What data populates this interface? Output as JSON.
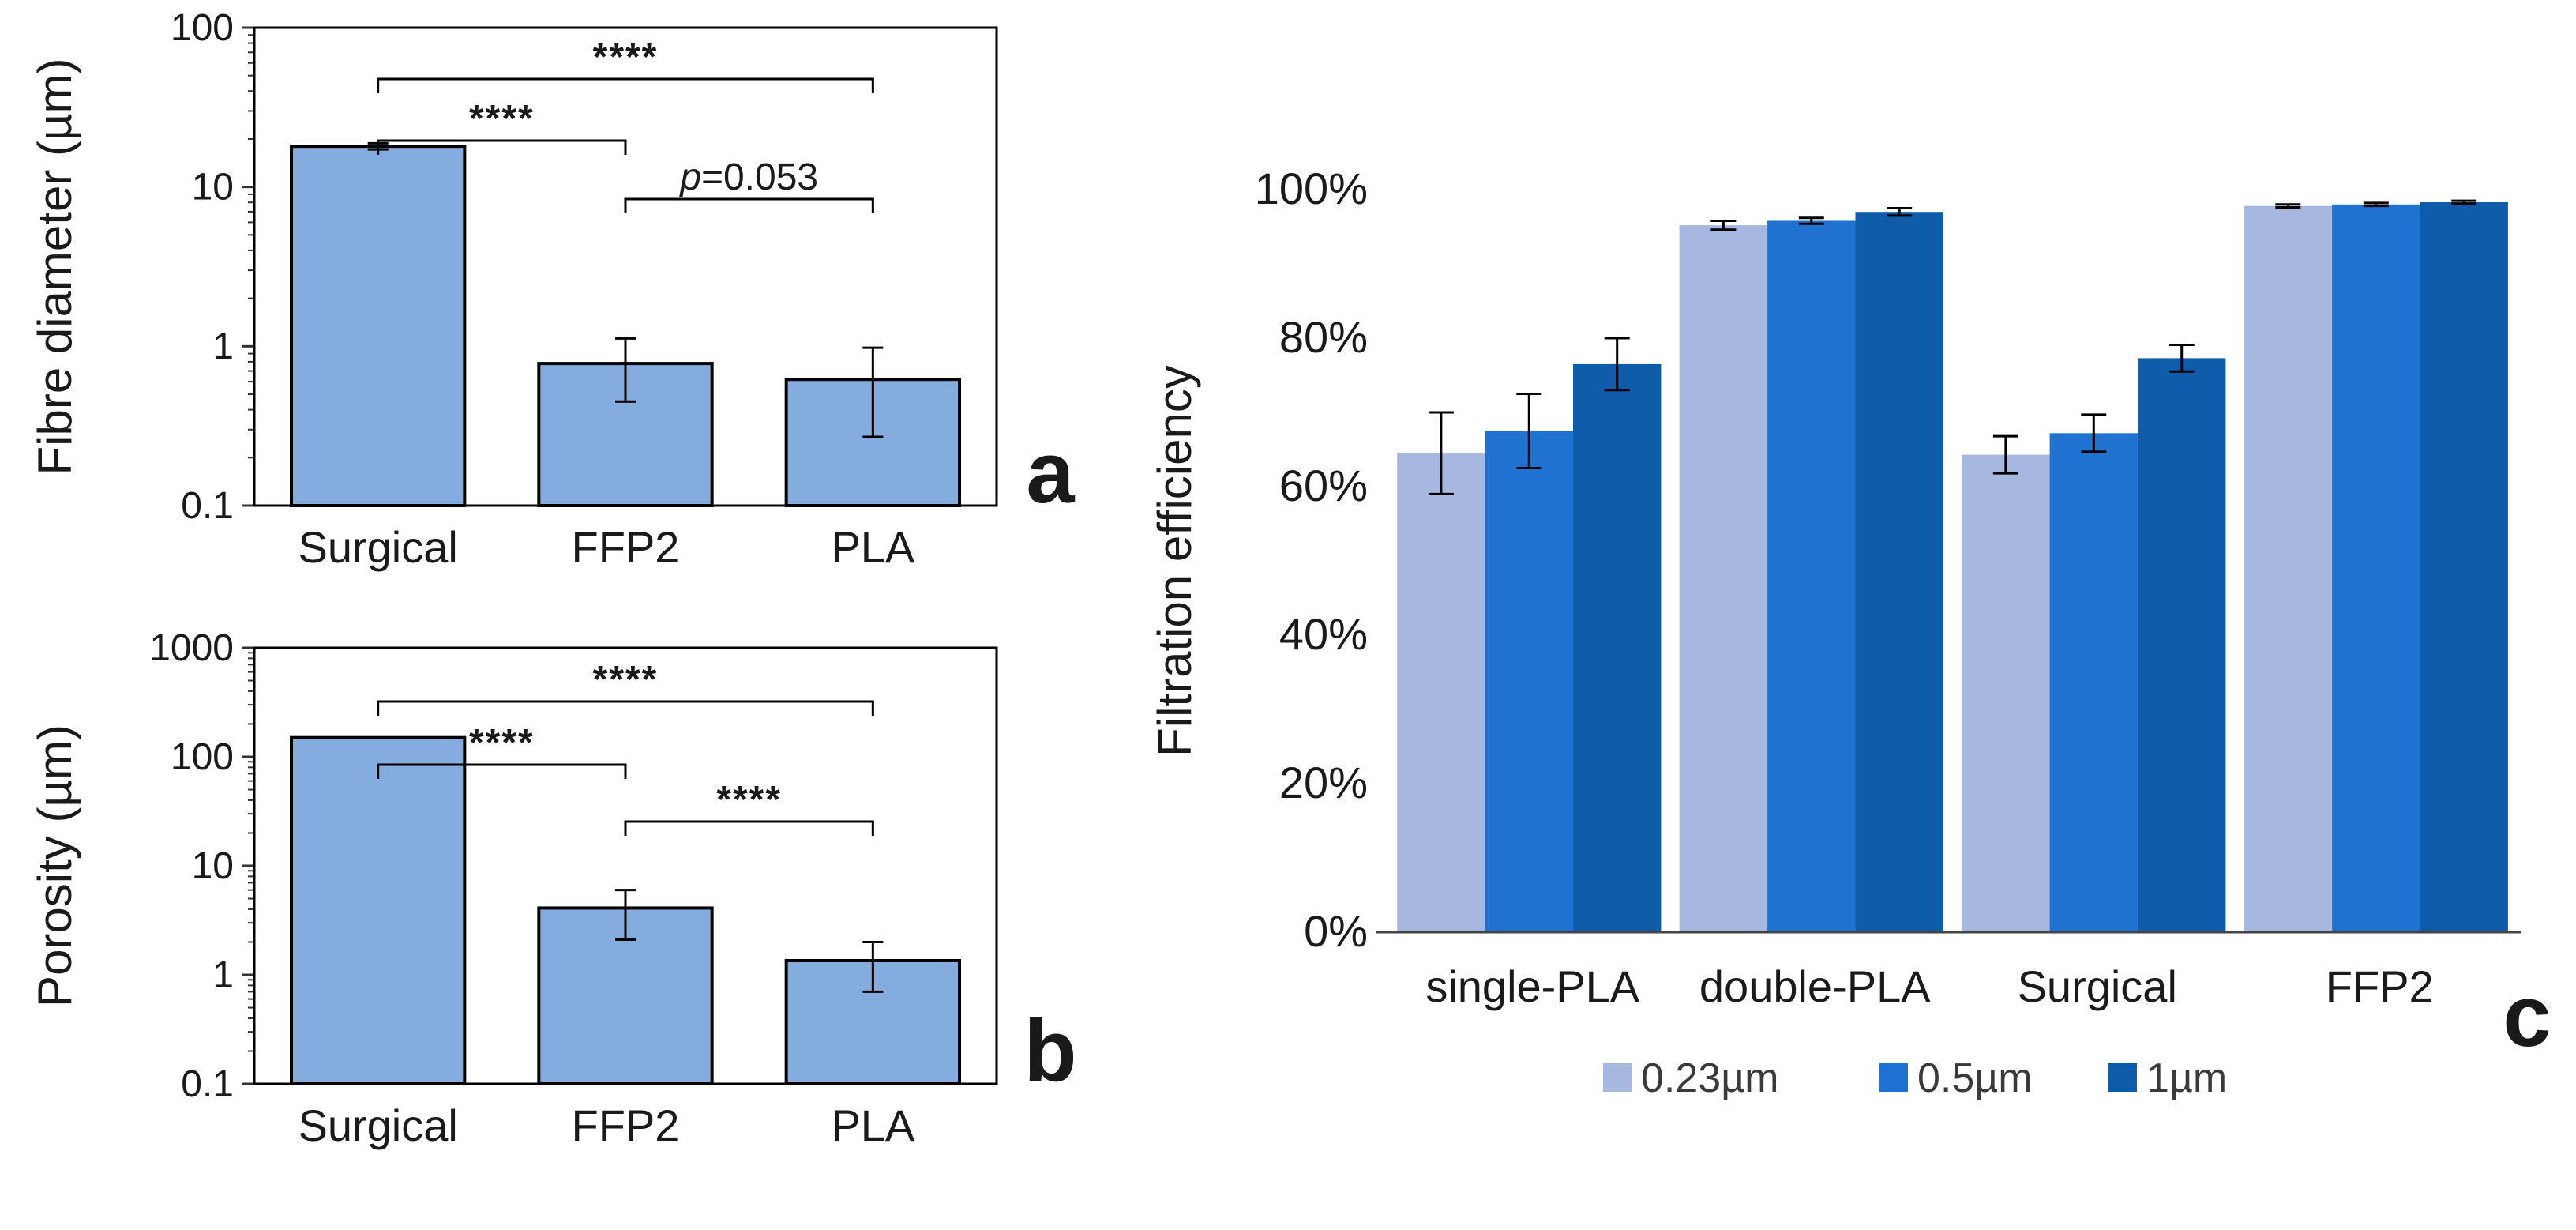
{
  "chart_data": [
    {
      "type": "bar",
      "panel_label": "a",
      "ylabel": "Fibre diameter (µm)",
      "yscale": "log",
      "ylim": [
        0.1,
        100
      ],
      "yticks": [
        "0.1",
        "1",
        "10",
        "100"
      ],
      "categories": [
        "Surgical",
        "FFP2",
        "PLA"
      ],
      "values": [
        18,
        0.78,
        0.62
      ],
      "error_low": [
        17.2,
        0.45,
        0.27
      ],
      "error_high": [
        18.8,
        1.12,
        0.98
      ],
      "color": "#85ACDE",
      "significance": [
        {
          "from": "Surgical",
          "to": "PLA",
          "label": "****"
        },
        {
          "from": "Surgical",
          "to": "FFP2",
          "label": "****"
        },
        {
          "from": "FFP2",
          "to": "PLA",
          "label_italic": "p",
          "label_rest": "=0.053"
        }
      ]
    },
    {
      "type": "bar",
      "panel_label": "b",
      "ylabel": "Porosity (µm)",
      "yscale": "log",
      "ylim": [
        0.1,
        1000
      ],
      "yticks": [
        "0.1",
        "1",
        "10",
        "100",
        "1000"
      ],
      "categories": [
        "Surgical",
        "FFP2",
        "PLA"
      ],
      "values": [
        150,
        4.1,
        1.35
      ],
      "error_low": [
        150,
        2.1,
        0.7
      ],
      "error_high": [
        150,
        6.0,
        2.0
      ],
      "color": "#85ACDE",
      "significance": [
        {
          "from": "Surgical",
          "to": "PLA",
          "label": "****"
        },
        {
          "from": "Surgical",
          "to": "FFP2",
          "label": "****"
        },
        {
          "from": "FFP2",
          "to": "PLA",
          "label": "****"
        }
      ]
    },
    {
      "type": "bar",
      "panel_label": "c",
      "ylabel": "Filtration efficiency",
      "ylim": [
        0,
        100
      ],
      "yticks": [
        "0%",
        "20%",
        "40%",
        "60%",
        "80%",
        "100%"
      ],
      "categories": [
        "single-PLA",
        "double-PLA",
        "Surgical",
        "FFP2"
      ],
      "series": [
        {
          "name": "0.23µm",
          "color": "#A6B8E0",
          "values": [
            64.5,
            95.2,
            64.3,
            97.8
          ],
          "errors": [
            5.5,
            0.6,
            2.5,
            0.2
          ]
        },
        {
          "name": "0.5µm",
          "color": "#1F72CF",
          "values": [
            67.5,
            95.8,
            67.2,
            98.0
          ],
          "errors": [
            5.0,
            0.4,
            2.5,
            0.2
          ]
        },
        {
          "name": "1µm",
          "color": "#0F5CAA",
          "values": [
            76.5,
            97.0,
            77.3,
            98.3
          ],
          "errors": [
            3.5,
            0.5,
            1.8,
            0.2
          ]
        }
      ]
    }
  ]
}
